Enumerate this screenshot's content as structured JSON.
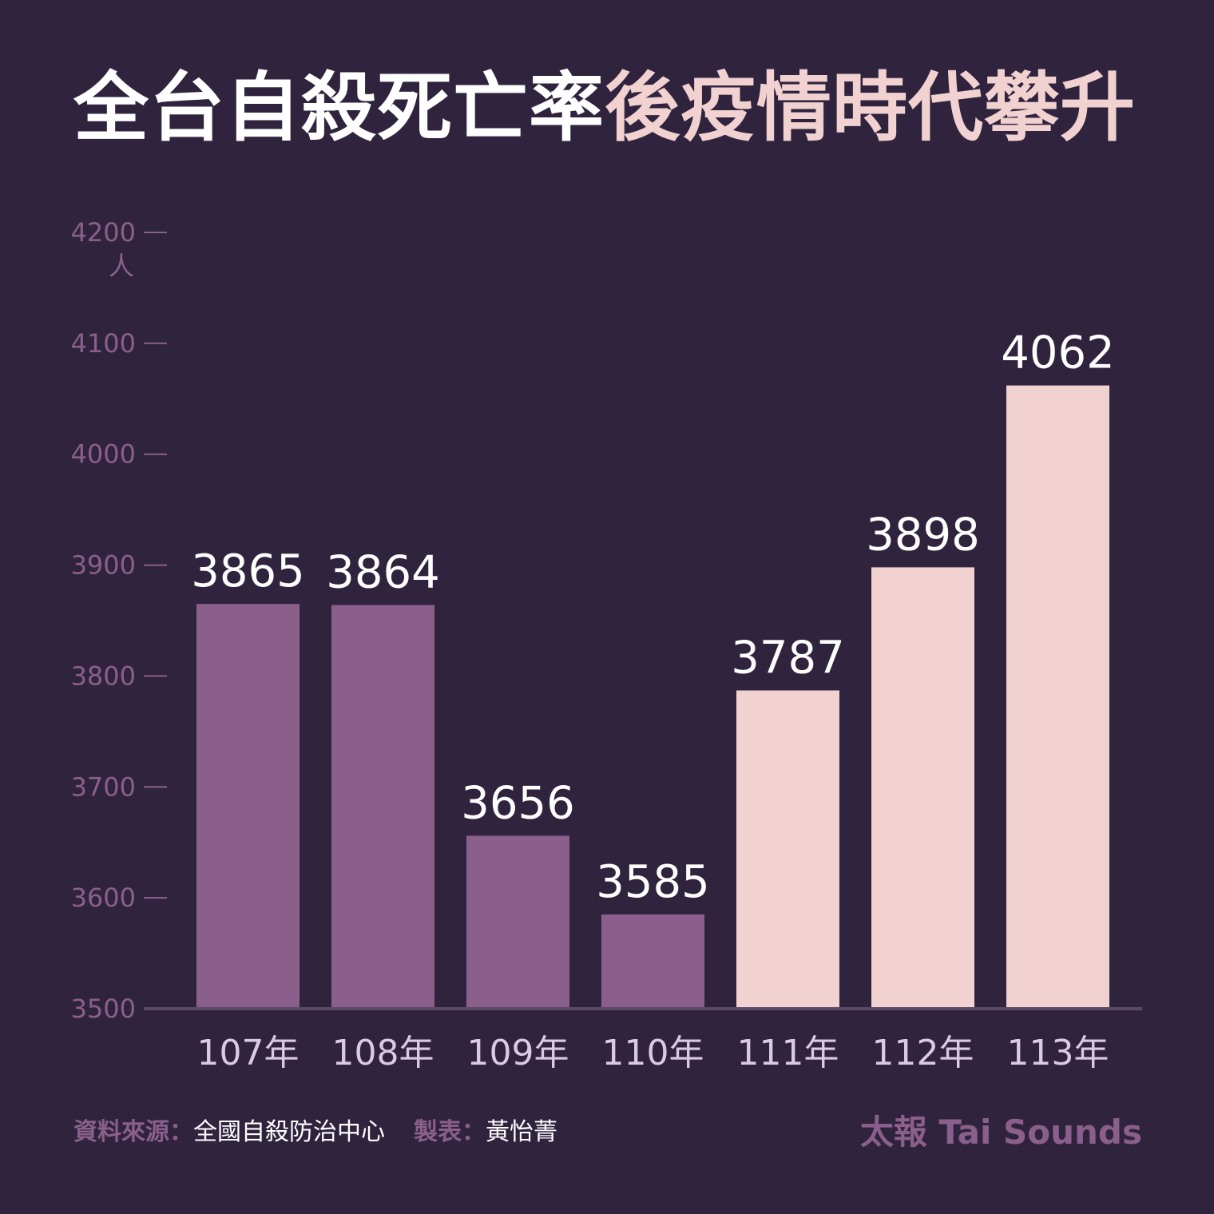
{
  "title": {
    "part1": "全台自殺死亡率",
    "part2": "後疫情時代攀升"
  },
  "colors": {
    "background": "#30233e",
    "bar_pre": "#8a5f8c",
    "bar_post": "#f1d2d0",
    "axis_text": "#8a5f8c",
    "category_text": "#dcc9e6",
    "value_text": "#ffffff"
  },
  "chart_data": {
    "type": "bar",
    "categories": [
      "107年",
      "108年",
      "109年",
      "110年",
      "111年",
      "112年",
      "113年"
    ],
    "values": [
      3865,
      3864,
      3656,
      3585,
      3787,
      3898,
      4062
    ],
    "highlight_from_index": 4,
    "ylim": [
      3500,
      4200
    ],
    "yticks": [
      3500,
      3600,
      3700,
      3800,
      3900,
      4000,
      4100,
      4200
    ],
    "yunit": "人",
    "data_labels": true,
    "grid": false
  },
  "footer": {
    "source_label": "資料來源：",
    "source_value": "全國自殺防治中心",
    "author_label": "製表：",
    "author_value": "黃怡菁"
  },
  "brand": "太報 Tai Sounds"
}
